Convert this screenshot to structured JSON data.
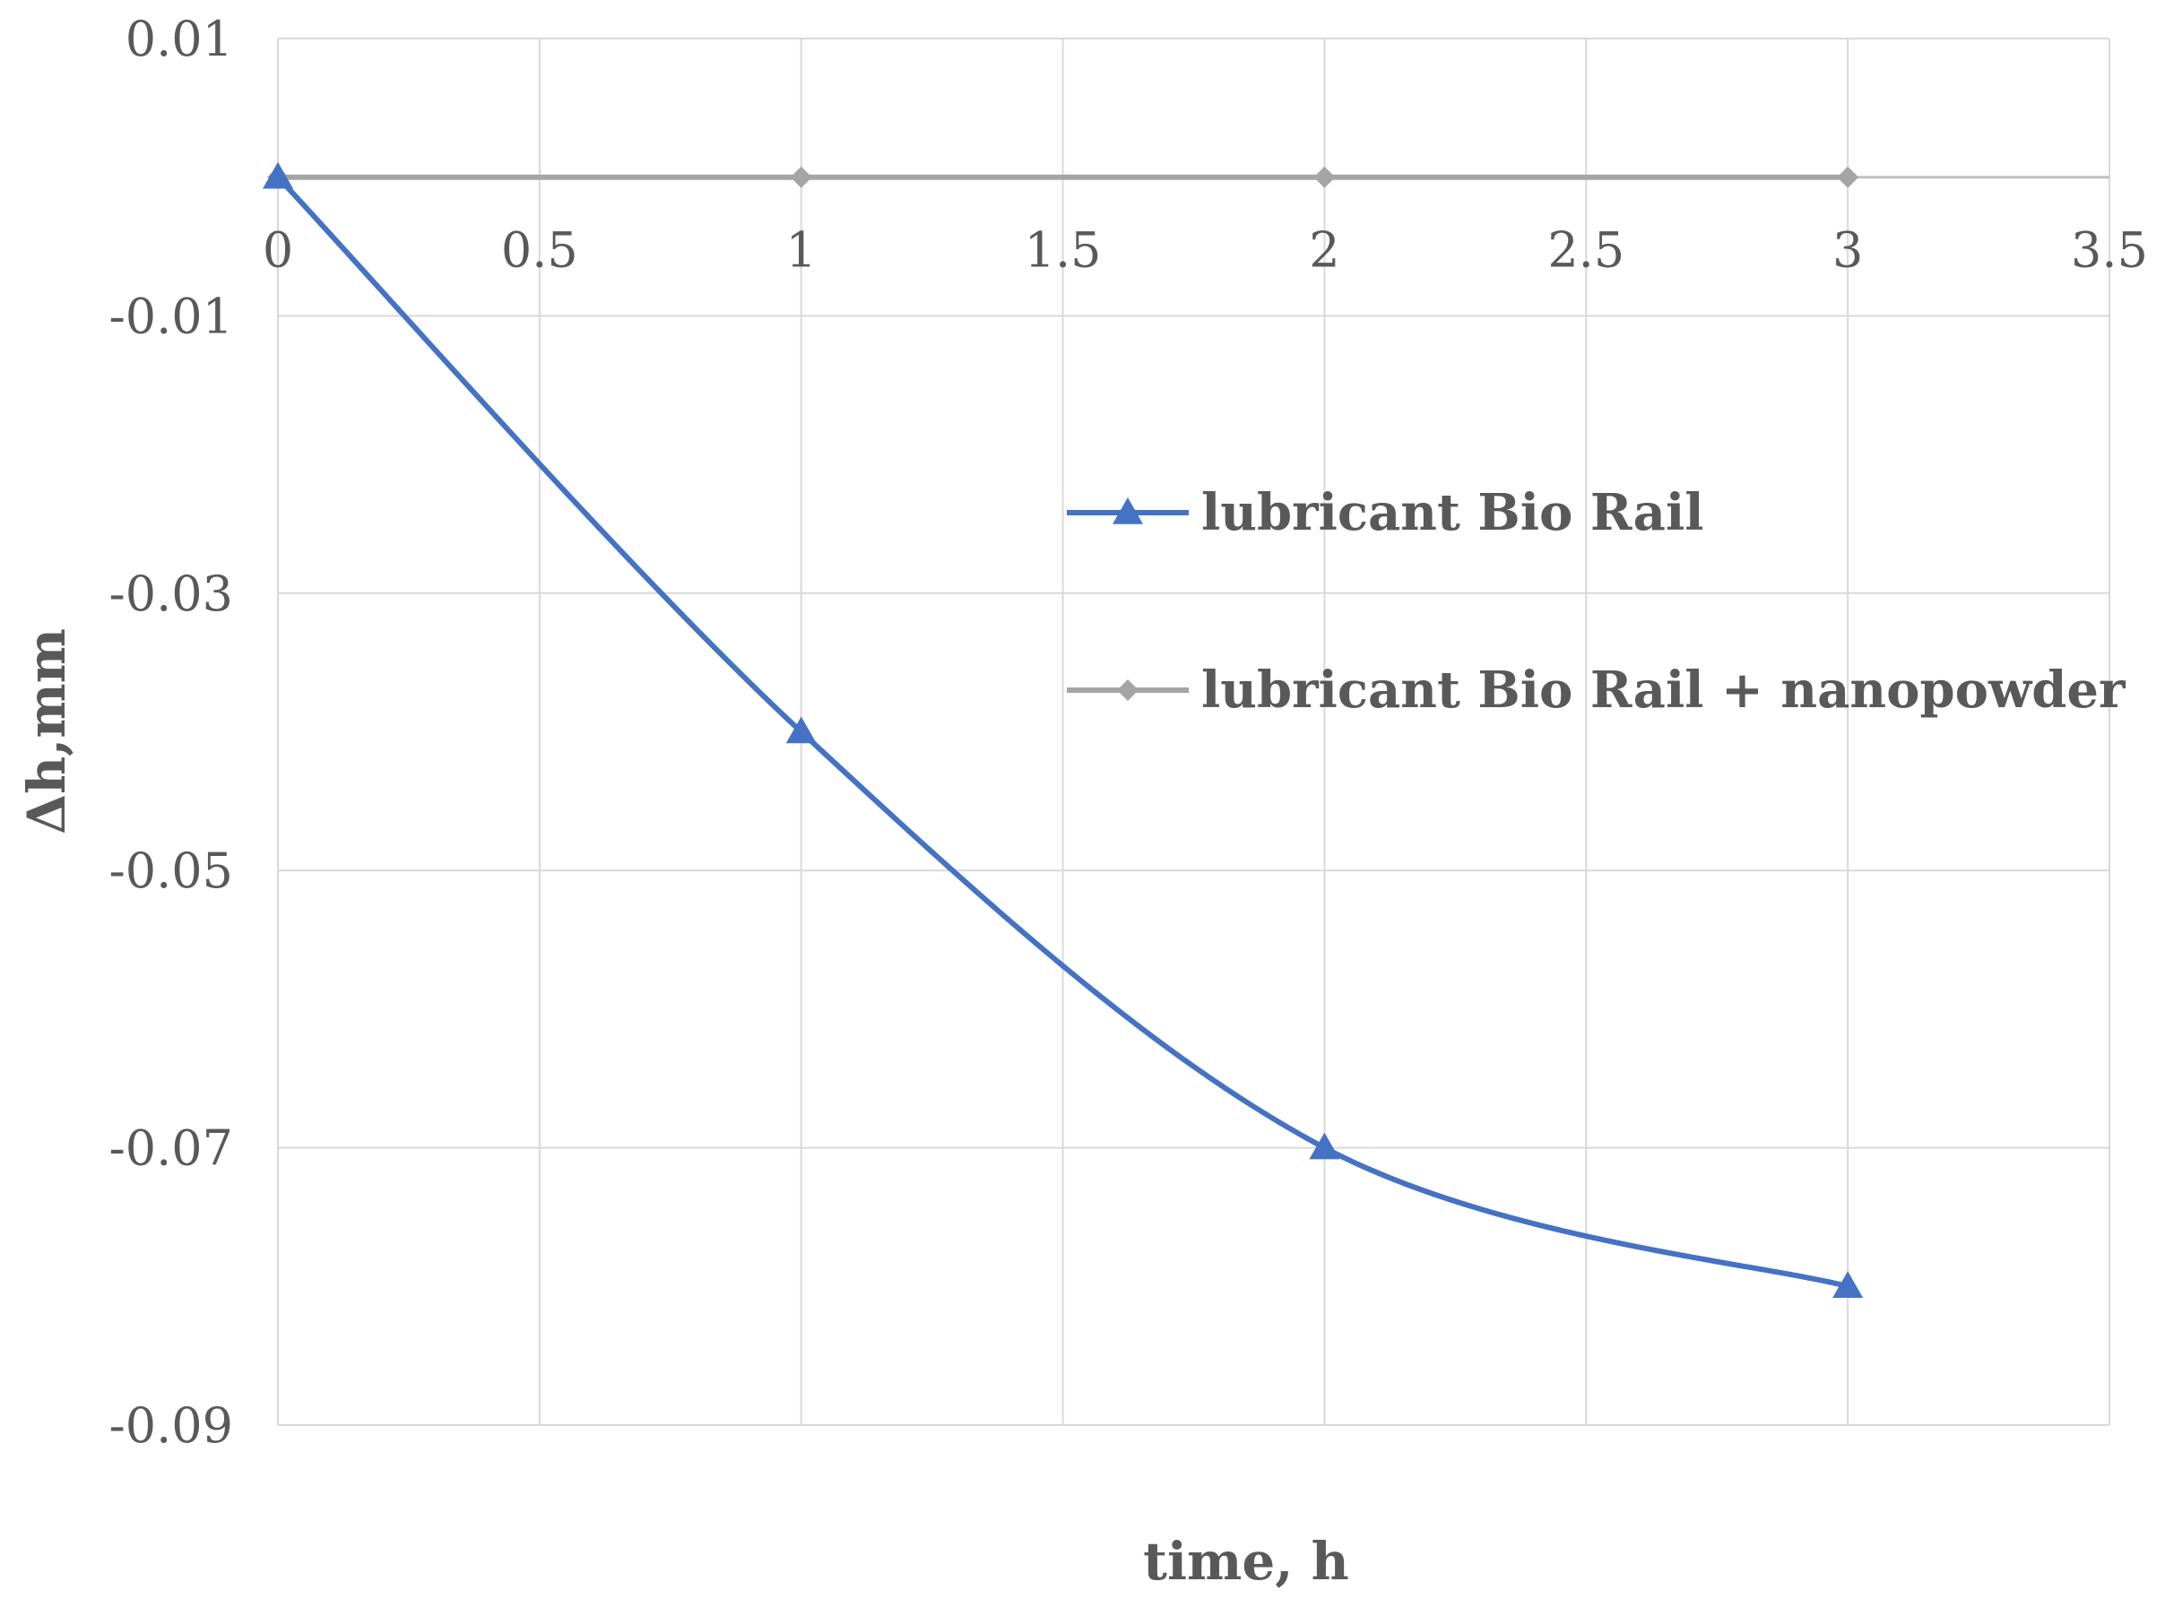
{
  "chart_data": {
    "type": "line",
    "title": "",
    "xlabel": "time, h",
    "ylabel": "Δh,mm",
    "xlim": [
      0,
      3.5
    ],
    "ylim": [
      -0.09,
      0.01
    ],
    "x_ticks": [
      0,
      0.5,
      1,
      1.5,
      2,
      2.5,
      3,
      3.5
    ],
    "x_tick_labels": [
      "0",
      "0.5",
      "1",
      "1.5",
      "2",
      "2.5",
      "3",
      "3.5"
    ],
    "y_ticks": [
      0.01,
      -0.01,
      -0.03,
      -0.05,
      -0.07,
      -0.09
    ],
    "y_tick_labels": [
      "0.01",
      "-0.01",
      "-0.03",
      "-0.05",
      "-0.07",
      "-0.09"
    ],
    "grid": true,
    "smooth": true,
    "legend_position": "right",
    "series": [
      {
        "name": "lubricant Bio Rail",
        "x": [
          0,
          1,
          2,
          3
        ],
        "values": [
          0,
          -0.04,
          -0.07,
          -0.08
        ],
        "color": "#4472c4",
        "marker": "triangle"
      },
      {
        "name": "lubricant Bio Rail + nanopowder",
        "x": [
          0,
          1,
          2,
          3
        ],
        "values": [
          0,
          0,
          0,
          0
        ],
        "color": "#a5a5a5",
        "marker": "diamond"
      }
    ]
  }
}
